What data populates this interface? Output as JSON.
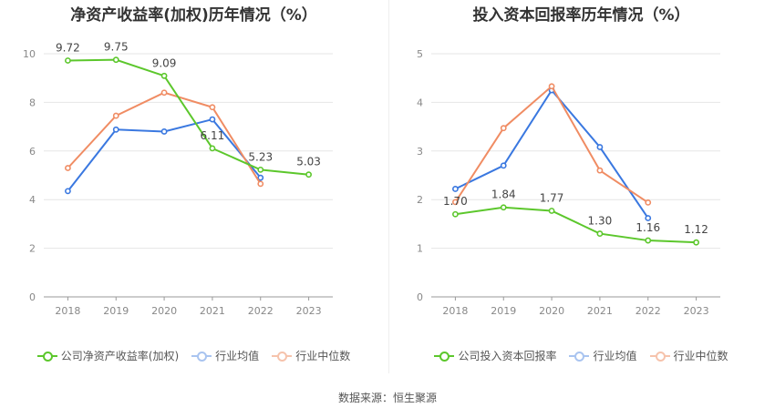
{
  "charts": [
    {
      "title": "净资产收益率(加权)历年情况（%）",
      "legend": [
        "公司净资产收益率(加权)",
        "行业均值",
        "行业中位数"
      ]
    },
    {
      "title": "投入资本回报率历年情况（%）",
      "legend": [
        "公司投入资本回报率",
        "行业均值",
        "行业中位数"
      ]
    }
  ],
  "source": "数据来源：恒生聚源",
  "colors": {
    "company": "#5cc72c",
    "avg": "#3a78e0",
    "median": "#f08c63"
  },
  "chart_data": [
    {
      "type": "line",
      "title": "净资产收益率(加权)历年情况（%）",
      "categories": [
        "2018",
        "2019",
        "2020",
        "2021",
        "2022",
        "2023"
      ],
      "ylim": [
        0,
        10
      ],
      "yticks": [
        0,
        2,
        4,
        6,
        8,
        10
      ],
      "series": [
        {
          "name": "公司净资产收益率(加权)",
          "color": "#5cc72c",
          "labels": true,
          "values": [
            9.72,
            9.75,
            9.09,
            6.11,
            5.23,
            5.03
          ]
        },
        {
          "name": "行业均值",
          "color": "#3a78e0",
          "labels": false,
          "values": [
            4.35,
            6.88,
            6.8,
            7.3,
            4.9,
            null
          ]
        },
        {
          "name": "行业中位数",
          "color": "#f08c63",
          "labels": false,
          "values": [
            5.3,
            7.45,
            8.4,
            7.8,
            4.65,
            null
          ]
        }
      ]
    },
    {
      "type": "line",
      "title": "投入资本回报率历年情况（%）",
      "categories": [
        "2018",
        "2019",
        "2020",
        "2021",
        "2022",
        "2023"
      ],
      "ylim": [
        0,
        5
      ],
      "yticks": [
        0,
        1,
        2,
        3,
        4,
        5
      ],
      "series": [
        {
          "name": "公司投入资本回报率",
          "color": "#5cc72c",
          "labels": true,
          "values": [
            1.7,
            1.84,
            1.77,
            1.3,
            1.16,
            1.12
          ]
        },
        {
          "name": "行业均值",
          "color": "#3a78e0",
          "labels": false,
          "values": [
            2.22,
            2.7,
            4.25,
            3.08,
            1.62,
            null
          ]
        },
        {
          "name": "行业中位数",
          "color": "#f08c63",
          "labels": false,
          "values": [
            1.95,
            3.47,
            4.33,
            2.6,
            1.94,
            null
          ]
        }
      ]
    }
  ]
}
